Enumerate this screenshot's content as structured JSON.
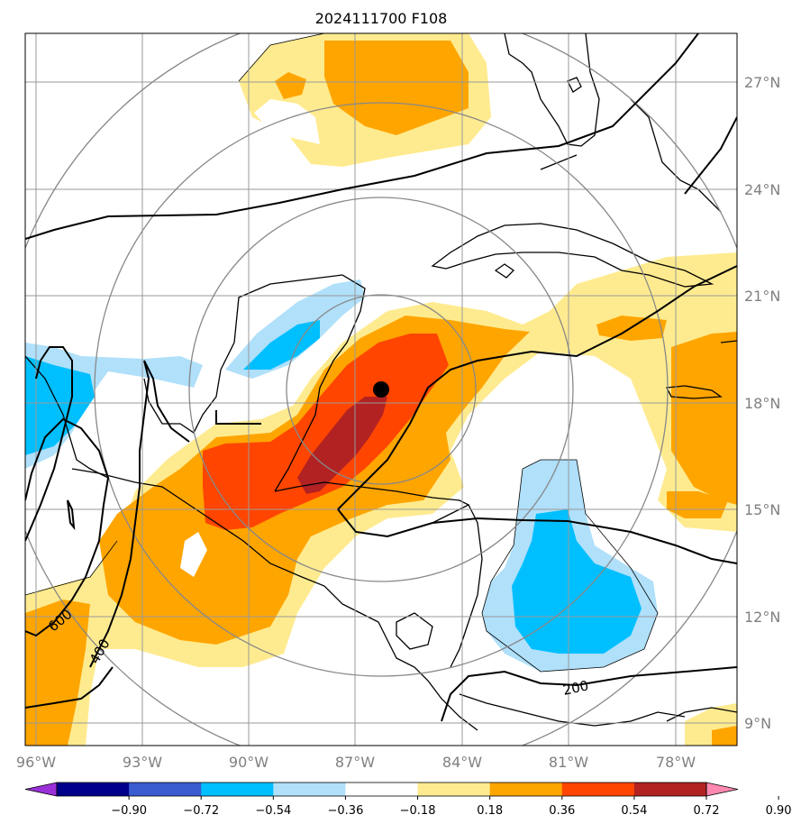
{
  "title": "2024111700 F108",
  "map": {
    "lon_labels": [
      "96°W",
      "93°W",
      "90°W",
      "87°W",
      "84°W",
      "81°W",
      "78°W"
    ],
    "lat_labels": [
      "27°N",
      "24°N",
      "21°N",
      "18°N",
      "15°N",
      "12°N",
      "9°N"
    ],
    "lon_range": [
      -96,
      -76.3
    ],
    "lat_range": [
      8.3,
      28.7
    ],
    "grid": true,
    "storm_marker": {
      "lon": -85.7,
      "lat": 18.4,
      "color": "#000000"
    },
    "range_ring_center": {
      "lon": -85.7,
      "lat": 18.4
    },
    "contour_labels": [
      "600",
      "400",
      "200"
    ]
  },
  "colorbar": {
    "ticks": [
      "−0.90",
      "−0.72",
      "−0.54",
      "−0.36",
      "−0.18",
      "0.18",
      "0.36",
      "0.54",
      "0.72",
      "0.90"
    ],
    "colors": [
      "#9b30d9",
      "#00008b",
      "#3b5bd0",
      "#00bfff",
      "#b0e0fa",
      "#ffffff",
      "#ffeb8f",
      "#ffa500",
      "#ff4500",
      "#b22222",
      "#ff88b0"
    ],
    "extend": "both"
  },
  "colors": {
    "orange_light": "#ffeb8f",
    "orange": "#ffa500",
    "red": "#ff4500",
    "darkred": "#b22222",
    "blue_light": "#b0e0fa",
    "blue": "#00bfff"
  }
}
